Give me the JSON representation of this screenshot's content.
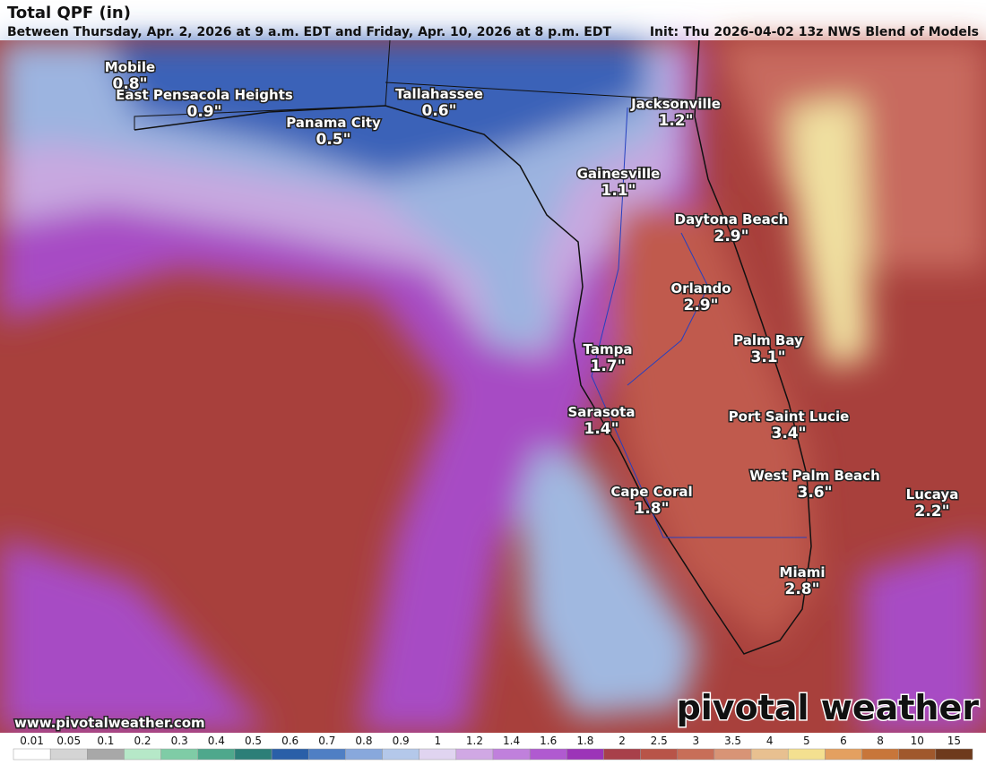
{
  "header": {
    "title": "Total QPF (in)",
    "subtitle": "Between Thursday, Apr. 2, 2026 at 9 a.m. EDT and Friday, Apr. 10, 2026 at 8 p.m. EDT",
    "init": "Init: Thu 2026-04-02 13z NWS Blend of Models"
  },
  "cities": [
    {
      "name": "Mobile",
      "value": "0.8\""
    },
    {
      "name": "East Pensacola Heights",
      "value": "0.9\""
    },
    {
      "name": "Panama City",
      "value": "0.5\""
    },
    {
      "name": "Tallahassee",
      "value": "0.6\""
    },
    {
      "name": "Jacksonville",
      "value": "1.2\""
    },
    {
      "name": "Gainesville",
      "value": "1.1\""
    },
    {
      "name": "Daytona Beach",
      "value": "2.9\""
    },
    {
      "name": "Orlando",
      "value": "2.9\""
    },
    {
      "name": "Palm Bay",
      "value": "3.1\""
    },
    {
      "name": "Tampa",
      "value": "1.7\""
    },
    {
      "name": "Sarasota",
      "value": "1.4\""
    },
    {
      "name": "Port Saint Lucie",
      "value": "3.4\""
    },
    {
      "name": "West Palm Beach",
      "value": "3.6\""
    },
    {
      "name": "Cape Coral",
      "value": "1.8\""
    },
    {
      "name": "Lucaya",
      "value": "2.2\""
    },
    {
      "name": "Miami",
      "value": "2.8\""
    }
  ],
  "watermark": "pivotal weather",
  "url": "www.pivotalweather.com",
  "legend": {
    "labels": [
      "0.01",
      "0.05",
      "0.1",
      "0.2",
      "0.3",
      "0.4",
      "0.5",
      "0.6",
      "0.7",
      "0.8",
      "0.9",
      "1",
      "1.2",
      "1.4",
      "1.6",
      "1.8",
      "2",
      "2.5",
      "3",
      "3.5",
      "4",
      "5",
      "6",
      "8",
      "10",
      "15"
    ],
    "colors": [
      "#ffffff",
      "#d4d4d4",
      "#a8a8a8",
      "#b6e8c8",
      "#7fcca6",
      "#4ea88c",
      "#2c7f78",
      "#2a5fa8",
      "#4f7fc4",
      "#88a8dc",
      "#b4c8ea",
      "#e0d4f0",
      "#d0a8e4",
      "#c080dc",
      "#b05ad0",
      "#9c34b8",
      "#a8404a",
      "#b85448",
      "#c86e58",
      "#d89476",
      "#e8c090",
      "#f4e090",
      "#e4a060",
      "#c8763a",
      "#a0582c",
      "#6e3a1c"
    ]
  }
}
